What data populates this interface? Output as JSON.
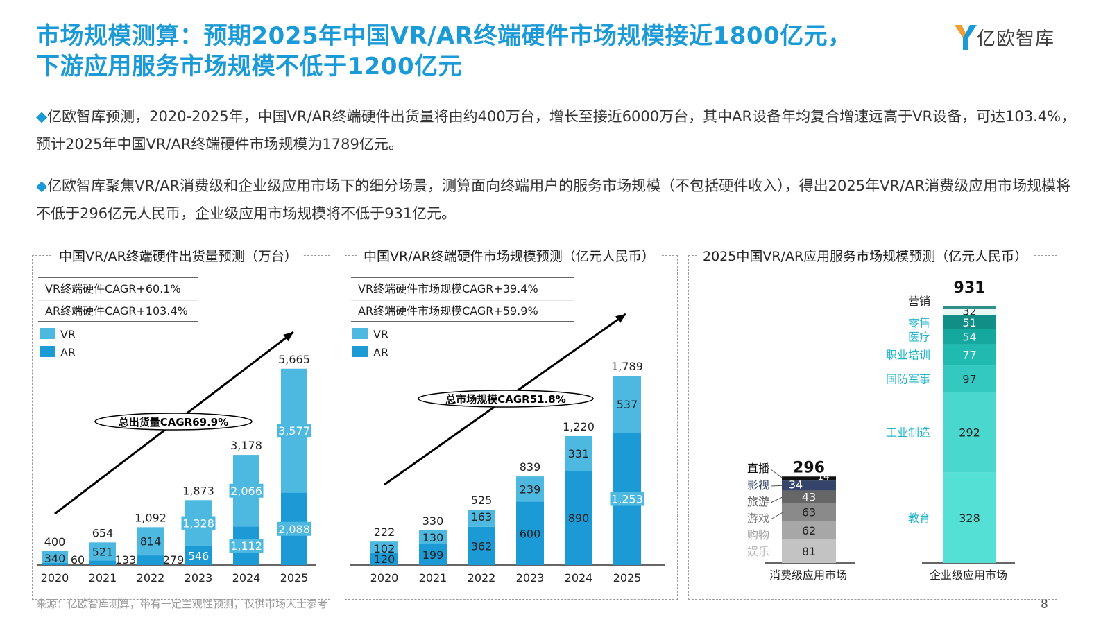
{
  "header": {
    "title_line1": "市场规模测算：预期2025年中国VR/AR终端硬件市场规模接近1800亿元，",
    "title_line2": "下游应用服务市场规模不低于1200亿元",
    "logo_text": "亿欧智库"
  },
  "bullets": [
    {
      "marker": "◆",
      "text": "亿欧智库预测，2020-2025年，中国VR/AR终端硬件出货量将由约400万台，增长至接近6000万台，其中AR设备年均复合增速远高于VR设备，可达103.4%，预计2025年中国VR/AR终端硬件市场规模为1789亿元。"
    },
    {
      "marker": "◆",
      "text": "亿欧智库聚焦VR/AR消费级和企业级应用市场下的细分场景，测算面向终端用户的服务市场规模（不包括硬件收入），得出2025年VR/AR消费级应用市场规模将不低于296亿元人民币，企业级应用市场规模将不低于931亿元。"
    }
  ],
  "footer": {
    "source": "来源：亿欧智库测算，带有一定主观性预测，仅供市场人士参考",
    "page": "8"
  },
  "colors": {
    "vr": "#4db8e0",
    "ar": "#1c9ad6",
    "accent": "#1a9ad6"
  },
  "chart_data": [
    {
      "type": "bar",
      "stacked": true,
      "title": "中国VR/AR终端硬件出货量预测（万台）",
      "notes": [
        "VR终端硬件CAGR+60.1%",
        "AR终端硬件CAGR+103.4%"
      ],
      "trend_label": "总出货量CAGR69.9%",
      "categories": [
        "2020",
        "2021",
        "2022",
        "2023",
        "2024",
        "2025"
      ],
      "series": [
        {
          "name": "AR",
          "values": [
            60,
            133,
            279,
            546,
            1112,
            2088
          ]
        },
        {
          "name": "VR",
          "values": [
            340,
            521,
            814,
            1328,
            2066,
            3577
          ]
        }
      ],
      "totals": [
        400,
        654,
        1092,
        1873,
        3178,
        5665
      ],
      "total_labels": [
        "400",
        "654",
        "1,092",
        "1,873",
        "3,178",
        "5,665"
      ],
      "ar_labels": [
        "60",
        "133",
        "279",
        "546",
        "1,112",
        "2,088"
      ],
      "vr_labels": [
        "340",
        "521",
        "814",
        "1,328",
        "2,066",
        "3,577"
      ],
      "legend": [
        "VR",
        "AR"
      ],
      "ylim": [
        0,
        5900
      ]
    },
    {
      "type": "bar",
      "stacked": true,
      "title": "中国VR/AR终端硬件市场规模预测（亿元人民币）",
      "notes": [
        "VR终端硬件市场规模CAGR+39.4%",
        "AR终端硬件市场规模CAGR+59.9%"
      ],
      "trend_label": "总市场规模CAGR51.8%",
      "categories": [
        "2020",
        "2021",
        "2022",
        "2023",
        "2024",
        "2025"
      ],
      "series": [
        {
          "name": "AR",
          "values": [
            120,
            199,
            362,
            600,
            890,
            1253
          ]
        },
        {
          "name": "VR",
          "values": [
            102,
            130,
            163,
            239,
            331,
            537
          ]
        }
      ],
      "totals": [
        222,
        330,
        525,
        839,
        1220,
        1789
      ],
      "total_labels": [
        "222",
        "330",
        "525",
        "839",
        "1,220",
        "1,789"
      ],
      "ar_labels": [
        "120",
        "199",
        "362",
        "600",
        "890",
        "1,253"
      ],
      "vr_labels": [
        "102",
        "130",
        "163",
        "239",
        "331",
        "537"
      ],
      "legend": [
        "VR",
        "AR"
      ],
      "ylim": [
        0,
        1870
      ]
    },
    {
      "type": "bar",
      "stacked": true,
      "title": "2025中国VR/AR应用服务市场规模预测（亿元人民币）",
      "categories": [
        "消费级应用市场",
        "企业级应用市场"
      ],
      "consumer": {
        "total": "296",
        "segments": [
          {
            "name": "娱乐",
            "value": 81,
            "color": "#c3c3c3"
          },
          {
            "name": "购物",
            "value": 62,
            "color": "#a7a7a7"
          },
          {
            "name": "游戏",
            "value": 63,
            "color": "#8a8a8a"
          },
          {
            "name": "旅游",
            "value": 43,
            "color": "#666666"
          },
          {
            "name": "影视",
            "value": 34,
            "color": "#34446a"
          },
          {
            "name": "直播",
            "value": 14,
            "color": "#111111"
          }
        ]
      },
      "enterprise": {
        "total": "931",
        "segments": [
          {
            "name": "教育",
            "value": 328,
            "color": "#55e0d6"
          },
          {
            "name": "工业制造",
            "value": 292,
            "color": "#4ad8ce"
          },
          {
            "name": "国防军事",
            "value": 97,
            "color": "#33c9c0"
          },
          {
            "name": "职业培训",
            "value": 77,
            "color": "#21bab0"
          },
          {
            "name": "医疗",
            "value": 54,
            "color": "#14a89e"
          },
          {
            "name": "零售",
            "value": 51,
            "color": "#118f86"
          },
          {
            "name": "营销",
            "value": 32,
            "color": "#e9f7f5"
          }
        ]
      }
    }
  ]
}
